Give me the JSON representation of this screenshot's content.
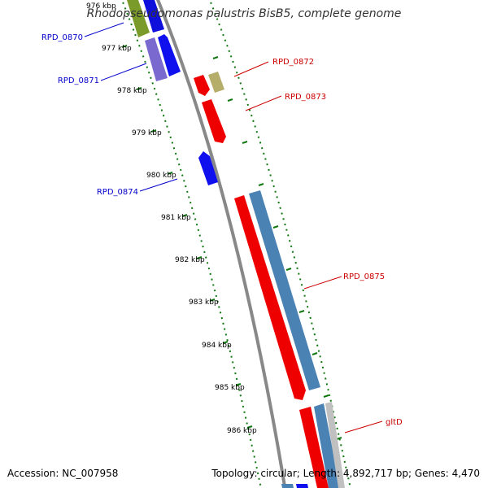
{
  "title": "Rhodopseudomonas palustris BisB5, complete genome",
  "footer": {
    "accession": "Accession: NC_007958",
    "summary": "Topology: circular; Length: 4,892,717 bp; Genes: 4,470"
  },
  "colors": {
    "forward_label": "#cc0000",
    "reverse_label": "#0000cc",
    "backbone": "#888888",
    "ticks": "#117711"
  },
  "kbp_labels": [
    "976 kbp",
    "977 kbp",
    "978 kbp",
    "979 kbp",
    "980 kbp",
    "981 kbp",
    "982 kbp",
    "983 kbp",
    "984 kbp",
    "985 kbp",
    "986 kbp"
  ],
  "gene_labels": [
    {
      "text": "RPD_0870",
      "strand": "reverse"
    },
    {
      "text": "RPD_0871",
      "strand": "reverse"
    },
    {
      "text": "RPD_0874",
      "strand": "reverse"
    },
    {
      "text": "RPD_0872",
      "strand": "forward"
    },
    {
      "text": "RPD_0873",
      "strand": "forward"
    },
    {
      "text": "RPD_0875",
      "strand": "forward"
    },
    {
      "text": "gltD",
      "strand": "forward"
    }
  ]
}
